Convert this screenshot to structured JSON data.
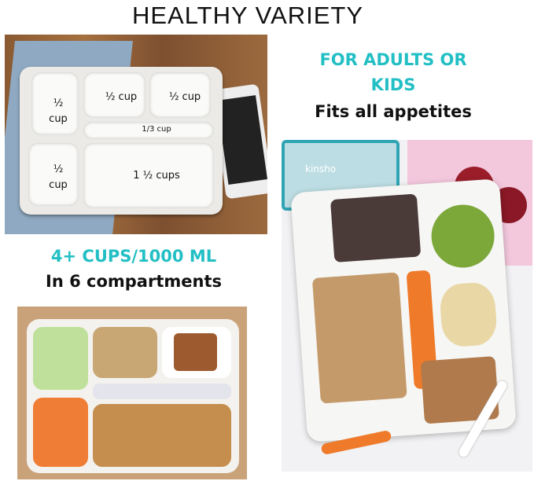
{
  "title": "HEALTHY VARIETY",
  "right_heading": {
    "line1": "FOR ADULTS OR",
    "line2": "KIDS",
    "line3": "Fits all appetites"
  },
  "left_heading": {
    "line1": "4+ CUPS/1000 ML",
    "line2": "In 6 compartments"
  },
  "tray_labels": {
    "top_left": "½ cup",
    "top_middle": "½ cup",
    "top_right": "½ cup",
    "strip": "1/3 cup",
    "bottom_left": "½ cup",
    "bottom_large": "1 ½ cups"
  },
  "brand": "kinsho",
  "colors": {
    "accent": "#22bfc4"
  }
}
